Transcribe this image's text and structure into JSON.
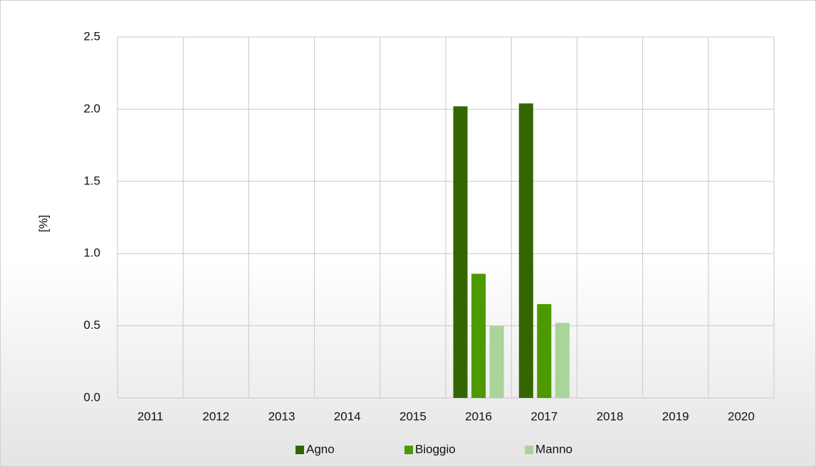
{
  "chart_data": {
    "type": "bar",
    "y_label": "[%]",
    "categories": [
      "2011",
      "2012",
      "2013",
      "2014",
      "2015",
      "2016",
      "2017",
      "2018",
      "2019",
      "2020"
    ],
    "series": [
      {
        "name": "Agno",
        "color": "#336600",
        "values": [
          null,
          null,
          null,
          null,
          null,
          2.02,
          2.04,
          null,
          null,
          null
        ]
      },
      {
        "name": "Bioggio",
        "color": "#4c9900",
        "values": [
          null,
          null,
          null,
          null,
          null,
          0.86,
          0.65,
          null,
          null,
          null
        ]
      },
      {
        "name": "Manno",
        "color": "#a9d49a",
        "values": [
          null,
          null,
          null,
          null,
          null,
          0.5,
          0.52,
          null,
          null,
          null
        ]
      }
    ],
    "ylim": [
      0,
      2.5
    ],
    "yticks": [
      {
        "value": 0,
        "label": "0.0"
      },
      {
        "value": 0.5,
        "label": "0.5"
      },
      {
        "value": 1,
        "label": "1.0"
      },
      {
        "value": 1.5,
        "label": "1.5"
      },
      {
        "value": 2,
        "label": "2.0"
      },
      {
        "value": 2.5,
        "label": "2.5"
      }
    ],
    "grid": true,
    "legend": "bottom"
  }
}
